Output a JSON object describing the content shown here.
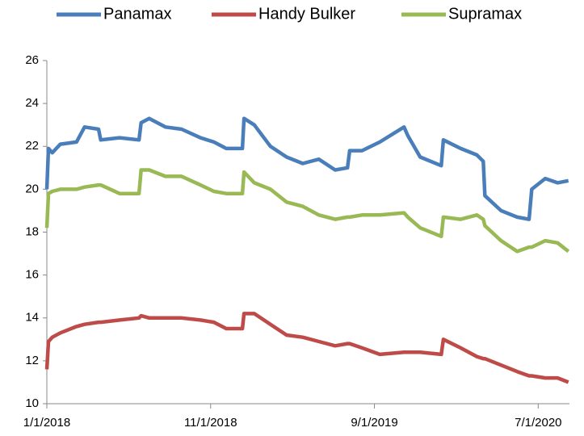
{
  "chart_data": {
    "type": "line",
    "x": [
      "2018-01-01",
      "2018-01-04",
      "2018-01-11",
      "2018-01-26",
      "2018-02-25",
      "2018-03-12",
      "2018-04-07",
      "2018-04-11",
      "2018-05-16",
      "2018-06-21",
      "2018-06-25",
      "2018-07-10",
      "2018-08-09",
      "2018-09-08",
      "2018-10-13",
      "2018-11-07",
      "2018-11-30",
      "2018-12-30",
      "2019-01-02",
      "2019-01-21",
      "2019-02-20",
      "2019-03-22",
      "2019-04-21",
      "2019-05-21",
      "2019-06-20",
      "2019-07-13",
      "2019-07-17",
      "2019-08-09",
      "2019-09-11",
      "2019-10-26",
      "2019-11-02",
      "2019-11-25",
      "2020-01-03",
      "2020-01-07",
      "2020-02-08",
      "2020-03-09",
      "2020-03-21",
      "2020-03-24",
      "2020-04-23",
      "2020-05-23",
      "2020-06-14",
      "2020-06-19",
      "2020-07-14",
      "2020-08-06",
      "2020-08-26"
    ],
    "series": [
      {
        "name": "Panamax",
        "color": "#4a7ebb",
        "values": [
          20.0,
          21.9,
          21.7,
          22.1,
          22.2,
          22.9,
          22.8,
          22.3,
          22.4,
          22.3,
          23.1,
          23.3,
          22.9,
          22.8,
          22.4,
          22.2,
          21.9,
          21.9,
          23.3,
          23.0,
          22.0,
          21.5,
          21.2,
          21.4,
          20.9,
          21.0,
          21.8,
          21.8,
          22.2,
          22.9,
          22.5,
          21.5,
          21.1,
          22.3,
          21.9,
          21.6,
          21.3,
          19.7,
          19.0,
          18.7,
          18.6,
          20.0,
          20.5,
          20.3,
          20.4
        ]
      },
      {
        "name": "Handy Bulker",
        "color": "#be4b48",
        "values": [
          11.6,
          12.9,
          13.1,
          13.3,
          13.6,
          13.7,
          13.8,
          13.8,
          13.9,
          14.0,
          14.1,
          14.0,
          14.0,
          14.0,
          13.9,
          13.8,
          13.5,
          13.5,
          14.2,
          14.2,
          13.7,
          13.2,
          13.1,
          12.9,
          12.7,
          12.8,
          12.8,
          12.6,
          12.3,
          12.4,
          12.4,
          12.4,
          12.3,
          13.0,
          12.6,
          12.2,
          12.1,
          12.1,
          11.8,
          11.5,
          11.3,
          11.3,
          11.2,
          11.2,
          11.0
        ]
      },
      {
        "name": "Supramax",
        "color": "#98b954",
        "values": [
          18.2,
          19.8,
          19.9,
          20.0,
          20.0,
          20.1,
          20.2,
          20.2,
          19.8,
          19.8,
          20.9,
          20.9,
          20.6,
          20.6,
          20.2,
          19.9,
          19.8,
          19.8,
          20.8,
          20.3,
          20.0,
          19.4,
          19.2,
          18.8,
          18.6,
          18.7,
          18.7,
          18.8,
          18.8,
          18.9,
          18.7,
          18.2,
          17.8,
          18.7,
          18.6,
          18.8,
          18.6,
          18.3,
          17.6,
          17.1,
          17.3,
          17.3,
          17.6,
          17.5,
          17.1
        ]
      }
    ],
    "xlim": [
      "2018-01-01",
      "2020-08-28"
    ],
    "xticks": [
      {
        "value": "2018-01-01",
        "label": "1/1/2018"
      },
      {
        "value": "2018-11-01",
        "label": "11/1/2018"
      },
      {
        "value": "2019-09-01",
        "label": "9/1/2019"
      },
      {
        "value": "2020-07-01",
        "label": "7/1/2020"
      }
    ],
    "ylim": [
      10,
      26
    ],
    "yticks": [
      10,
      12,
      14,
      16,
      18,
      20,
      22,
      24,
      26
    ],
    "legend": "top",
    "grid": false
  }
}
